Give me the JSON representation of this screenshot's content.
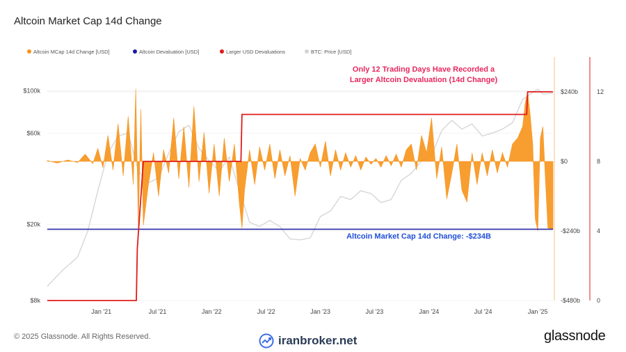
{
  "title": "Altcoin Market Cap 14d Change",
  "legend": [
    {
      "label": "Altcoin MCap 14d Change [USD]",
      "color": "#f7931a"
    },
    {
      "label": "Altcoin Devaluation [USD]",
      "color": "#1a1aa6"
    },
    {
      "label": "Larger USD Devaluations",
      "color": "#e01b1b"
    },
    {
      "label": "BTC: Price [USD]",
      "color": "#d3d3d3"
    }
  ],
  "annotations": {
    "top_line1": "Only 12 Trading Days Have Recorded a",
    "top_line2": "Larger Altcoin Devaluation (14d Change)",
    "top_color": "#e8265e",
    "bottom": "Altcoin Market Cap 14d Change: -$234B",
    "bottom_color": "#1f4fd6"
  },
  "footer": {
    "copyright": "© 2025 Glassnode. All Rights Reserved.",
    "watermark": "iranbroker.net",
    "brand": "glassnode"
  },
  "chart_data": {
    "type": "area",
    "x_ticks": [
      "Jan '21",
      "Jul '21",
      "Jan '22",
      "Jul '22",
      "Jan '23",
      "Jul '23",
      "Jan '24",
      "Jul '24",
      "Jan '25"
    ],
    "x_tick_pos": [
      0.107,
      0.218,
      0.325,
      0.433,
      0.54,
      0.647,
      0.755,
      0.862,
      0.97
    ],
    "left_axis": {
      "label": "BTC: Price [USD]",
      "scale": "log",
      "ticks": [
        "$8k",
        "$20k",
        "$60k",
        "$100k"
      ],
      "tick_values": [
        8000,
        20000,
        60000,
        100000
      ],
      "range": [
        8000,
        150000
      ]
    },
    "mid_axis": {
      "label": "Altcoin MCap 14d Change [USD]",
      "ticks": [
        "-$480b",
        "-$240b",
        "$0",
        "$240b"
      ],
      "tick_values": [
        -480,
        -240,
        0,
        240
      ],
      "range": [
        -480,
        360
      ]
    },
    "right_axis": {
      "label": "Larger USD Devaluations",
      "ticks": [
        "0",
        "4",
        "8",
        "12"
      ],
      "tick_values": [
        0,
        4,
        8,
        12
      ],
      "range": [
        0,
        14
      ]
    },
    "devaluation_level": -234,
    "larger_devaluations_steps": [
      {
        "x": 0.0,
        "y": 0
      },
      {
        "x": 0.176,
        "y": 0
      },
      {
        "x": 0.178,
        "y": 3
      },
      {
        "x": 0.19,
        "y": 8
      },
      {
        "x": 0.383,
        "y": 8
      },
      {
        "x": 0.385,
        "y": 10.7
      },
      {
        "x": 0.948,
        "y": 10.7
      },
      {
        "x": 0.95,
        "y": 12
      },
      {
        "x": 1.0,
        "y": 12
      }
    ],
    "btc_price": [
      {
        "x": 0.0,
        "y": 9500
      },
      {
        "x": 0.03,
        "y": 11500
      },
      {
        "x": 0.06,
        "y": 13500
      },
      {
        "x": 0.08,
        "y": 18500
      },
      {
        "x": 0.1,
        "y": 30000
      },
      {
        "x": 0.12,
        "y": 47000
      },
      {
        "x": 0.14,
        "y": 58000
      },
      {
        "x": 0.16,
        "y": 60000
      },
      {
        "x": 0.18,
        "y": 38000
      },
      {
        "x": 0.2,
        "y": 33000
      },
      {
        "x": 0.22,
        "y": 35000
      },
      {
        "x": 0.24,
        "y": 47000
      },
      {
        "x": 0.26,
        "y": 61000
      },
      {
        "x": 0.28,
        "y": 66000
      },
      {
        "x": 0.3,
        "y": 50000
      },
      {
        "x": 0.32,
        "y": 43000
      },
      {
        "x": 0.34,
        "y": 38000
      },
      {
        "x": 0.36,
        "y": 45000
      },
      {
        "x": 0.38,
        "y": 30000
      },
      {
        "x": 0.4,
        "y": 20500
      },
      {
        "x": 0.42,
        "y": 19500
      },
      {
        "x": 0.44,
        "y": 21000
      },
      {
        "x": 0.46,
        "y": 19500
      },
      {
        "x": 0.48,
        "y": 16800
      },
      {
        "x": 0.5,
        "y": 16600
      },
      {
        "x": 0.52,
        "y": 17000
      },
      {
        "x": 0.54,
        "y": 22000
      },
      {
        "x": 0.56,
        "y": 23500
      },
      {
        "x": 0.58,
        "y": 28000
      },
      {
        "x": 0.6,
        "y": 27000
      },
      {
        "x": 0.62,
        "y": 30000
      },
      {
        "x": 0.64,
        "y": 29000
      },
      {
        "x": 0.66,
        "y": 26000
      },
      {
        "x": 0.68,
        "y": 27000
      },
      {
        "x": 0.7,
        "y": 34000
      },
      {
        "x": 0.72,
        "y": 37000
      },
      {
        "x": 0.74,
        "y": 43000
      },
      {
        "x": 0.76,
        "y": 46000
      },
      {
        "x": 0.78,
        "y": 62000
      },
      {
        "x": 0.8,
        "y": 70000
      },
      {
        "x": 0.82,
        "y": 63000
      },
      {
        "x": 0.84,
        "y": 67000
      },
      {
        "x": 0.86,
        "y": 58000
      },
      {
        "x": 0.88,
        "y": 60000
      },
      {
        "x": 0.9,
        "y": 63000
      },
      {
        "x": 0.92,
        "y": 68000
      },
      {
        "x": 0.94,
        "y": 90000
      },
      {
        "x": 0.96,
        "y": 98000
      },
      {
        "x": 0.97,
        "y": 102000
      },
      {
        "x": 0.98,
        "y": 96000
      },
      {
        "x": 1.0,
        "y": 97000
      }
    ],
    "altcoin_change": [
      {
        "x": 0.0,
        "y": 3
      },
      {
        "x": 0.02,
        "y": -6
      },
      {
        "x": 0.04,
        "y": 5
      },
      {
        "x": 0.06,
        "y": -4
      },
      {
        "x": 0.075,
        "y": 25
      },
      {
        "x": 0.09,
        "y": -8
      },
      {
        "x": 0.1,
        "y": 45
      },
      {
        "x": 0.11,
        "y": -22
      },
      {
        "x": 0.12,
        "y": 90
      },
      {
        "x": 0.13,
        "y": -30
      },
      {
        "x": 0.14,
        "y": 130
      },
      {
        "x": 0.15,
        "y": -50
      },
      {
        "x": 0.16,
        "y": 155
      },
      {
        "x": 0.17,
        "y": -80
      },
      {
        "x": 0.175,
        "y": 250
      },
      {
        "x": 0.18,
        "y": -230
      },
      {
        "x": 0.185,
        "y": 180
      },
      {
        "x": 0.19,
        "y": -220
      },
      {
        "x": 0.2,
        "y": -80
      },
      {
        "x": 0.21,
        "y": 30
      },
      {
        "x": 0.22,
        "y": -120
      },
      {
        "x": 0.23,
        "y": 40
      },
      {
        "x": 0.24,
        "y": -40
      },
      {
        "x": 0.25,
        "y": 150
      },
      {
        "x": 0.26,
        "y": -60
      },
      {
        "x": 0.27,
        "y": 120
      },
      {
        "x": 0.28,
        "y": -90
      },
      {
        "x": 0.29,
        "y": 190
      },
      {
        "x": 0.3,
        "y": -70
      },
      {
        "x": 0.31,
        "y": 100
      },
      {
        "x": 0.32,
        "y": -110
      },
      {
        "x": 0.33,
        "y": 60
      },
      {
        "x": 0.34,
        "y": -120
      },
      {
        "x": 0.35,
        "y": 80
      },
      {
        "x": 0.36,
        "y": -70
      },
      {
        "x": 0.37,
        "y": 60
      },
      {
        "x": 0.38,
        "y": -150
      },
      {
        "x": 0.385,
        "y": -230
      },
      {
        "x": 0.39,
        "y": -100
      },
      {
        "x": 0.4,
        "y": 40
      },
      {
        "x": 0.41,
        "y": -80
      },
      {
        "x": 0.42,
        "y": 50
      },
      {
        "x": 0.43,
        "y": -30
      },
      {
        "x": 0.44,
        "y": 60
      },
      {
        "x": 0.45,
        "y": -60
      },
      {
        "x": 0.46,
        "y": 40
      },
      {
        "x": 0.47,
        "y": -50
      },
      {
        "x": 0.48,
        "y": 20
      },
      {
        "x": 0.49,
        "y": -120
      },
      {
        "x": 0.5,
        "y": 10
      },
      {
        "x": 0.51,
        "y": -30
      },
      {
        "x": 0.52,
        "y": 30
      },
      {
        "x": 0.53,
        "y": 60
      },
      {
        "x": 0.54,
        "y": -20
      },
      {
        "x": 0.55,
        "y": 70
      },
      {
        "x": 0.56,
        "y": -50
      },
      {
        "x": 0.57,
        "y": 40
      },
      {
        "x": 0.58,
        "y": -30
      },
      {
        "x": 0.59,
        "y": 30
      },
      {
        "x": 0.6,
        "y": -20
      },
      {
        "x": 0.61,
        "y": 20
      },
      {
        "x": 0.62,
        "y": -30
      },
      {
        "x": 0.63,
        "y": 15
      },
      {
        "x": 0.64,
        "y": -10
      },
      {
        "x": 0.65,
        "y": 10
      },
      {
        "x": 0.66,
        "y": -20
      },
      {
        "x": 0.67,
        "y": 20
      },
      {
        "x": 0.68,
        "y": -15
      },
      {
        "x": 0.69,
        "y": 25
      },
      {
        "x": 0.7,
        "y": -20
      },
      {
        "x": 0.71,
        "y": 40
      },
      {
        "x": 0.72,
        "y": 60
      },
      {
        "x": 0.73,
        "y": -30
      },
      {
        "x": 0.74,
        "y": 90
      },
      {
        "x": 0.75,
        "y": 30
      },
      {
        "x": 0.76,
        "y": 150
      },
      {
        "x": 0.77,
        "y": -60
      },
      {
        "x": 0.78,
        "y": 50
      },
      {
        "x": 0.79,
        "y": -130
      },
      {
        "x": 0.8,
        "y": -40
      },
      {
        "x": 0.81,
        "y": 60
      },
      {
        "x": 0.82,
        "y": -100
      },
      {
        "x": 0.83,
        "y": -140
      },
      {
        "x": 0.84,
        "y": 30
      },
      {
        "x": 0.85,
        "y": -80
      },
      {
        "x": 0.86,
        "y": 30
      },
      {
        "x": 0.87,
        "y": -50
      },
      {
        "x": 0.88,
        "y": 40
      },
      {
        "x": 0.89,
        "y": -40
      },
      {
        "x": 0.9,
        "y": 30
      },
      {
        "x": 0.91,
        "y": -20
      },
      {
        "x": 0.92,
        "y": 60
      },
      {
        "x": 0.93,
        "y": 80
      },
      {
        "x": 0.94,
        "y": 120
      },
      {
        "x": 0.945,
        "y": 200
      },
      {
        "x": 0.95,
        "y": 240
      },
      {
        "x": 0.955,
        "y": 160
      },
      {
        "x": 0.96,
        "y": 60
      },
      {
        "x": 0.965,
        "y": -200
      },
      {
        "x": 0.97,
        "y": -240
      },
      {
        "x": 0.975,
        "y": 80
      },
      {
        "x": 0.98,
        "y": 120
      },
      {
        "x": 0.985,
        "y": -60
      },
      {
        "x": 0.99,
        "y": -230
      },
      {
        "x": 1.0,
        "y": -234
      }
    ]
  }
}
